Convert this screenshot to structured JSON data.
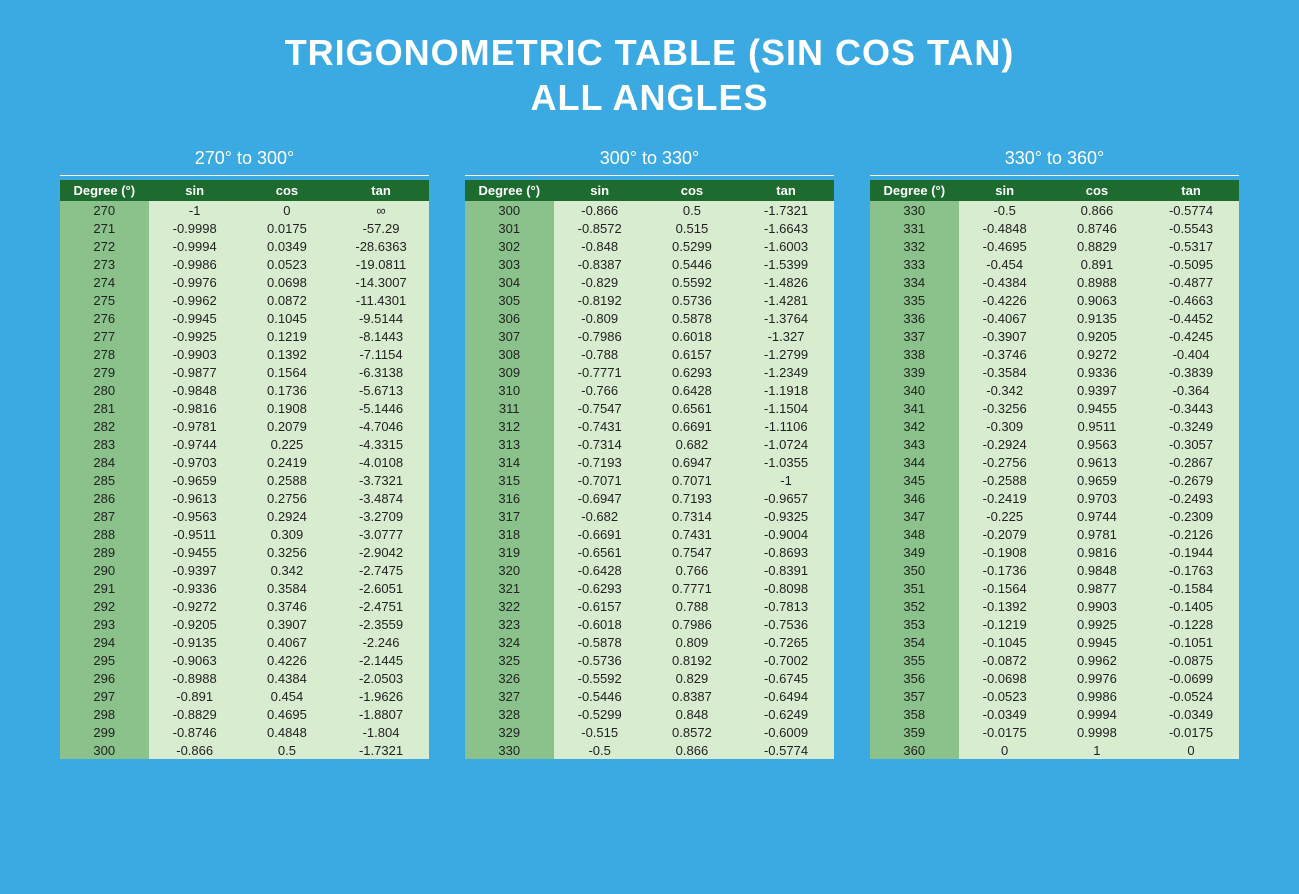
{
  "title_line1": "TRIGONOMETRIC TABLE (SIN COS TAN)",
  "title_line2": "ALL ANGLES",
  "columns": [
    "Degree (°)",
    "sin",
    "cos",
    "tan"
  ],
  "colors": {
    "page_bg": "#3ba9e2",
    "title_text": "#ffffff",
    "header_bg": "#1e6b2f",
    "header_text": "#ffffff",
    "deg_cell_bg": "#8bc28b",
    "val_cell_bg": "#d8ecd0",
    "cell_text": "#222222"
  },
  "sections": [
    {
      "range": "270° to 300°",
      "rows": [
        [
          "270",
          "-1",
          "0",
          "∞"
        ],
        [
          "271",
          "-0.9998",
          "0.0175",
          "-57.29"
        ],
        [
          "272",
          "-0.9994",
          "0.0349",
          "-28.6363"
        ],
        [
          "273",
          "-0.9986",
          "0.0523",
          "-19.0811"
        ],
        [
          "274",
          "-0.9976",
          "0.0698",
          "-14.3007"
        ],
        [
          "275",
          "-0.9962",
          "0.0872",
          "-11.4301"
        ],
        [
          "276",
          "-0.9945",
          "0.1045",
          "-9.5144"
        ],
        [
          "277",
          "-0.9925",
          "0.1219",
          "-8.1443"
        ],
        [
          "278",
          "-0.9903",
          "0.1392",
          "-7.1154"
        ],
        [
          "279",
          "-0.9877",
          "0.1564",
          "-6.3138"
        ],
        [
          "280",
          "-0.9848",
          "0.1736",
          "-5.6713"
        ],
        [
          "281",
          "-0.9816",
          "0.1908",
          "-5.1446"
        ],
        [
          "282",
          "-0.9781",
          "0.2079",
          "-4.7046"
        ],
        [
          "283",
          "-0.9744",
          "0.225",
          "-4.3315"
        ],
        [
          "284",
          "-0.9703",
          "0.2419",
          "-4.0108"
        ],
        [
          "285",
          "-0.9659",
          "0.2588",
          "-3.7321"
        ],
        [
          "286",
          "-0.9613",
          "0.2756",
          "-3.4874"
        ],
        [
          "287",
          "-0.9563",
          "0.2924",
          "-3.2709"
        ],
        [
          "288",
          "-0.9511",
          "0.309",
          "-3.0777"
        ],
        [
          "289",
          "-0.9455",
          "0.3256",
          "-2.9042"
        ],
        [
          "290",
          "-0.9397",
          "0.342",
          "-2.7475"
        ],
        [
          "291",
          "-0.9336",
          "0.3584",
          "-2.6051"
        ],
        [
          "292",
          "-0.9272",
          "0.3746",
          "-2.4751"
        ],
        [
          "293",
          "-0.9205",
          "0.3907",
          "-2.3559"
        ],
        [
          "294",
          "-0.9135",
          "0.4067",
          "-2.246"
        ],
        [
          "295",
          "-0.9063",
          "0.4226",
          "-2.1445"
        ],
        [
          "296",
          "-0.8988",
          "0.4384",
          "-2.0503"
        ],
        [
          "297",
          "-0.891",
          "0.454",
          "-1.9626"
        ],
        [
          "298",
          "-0.8829",
          "0.4695",
          "-1.8807"
        ],
        [
          "299",
          "-0.8746",
          "0.4848",
          "-1.804"
        ],
        [
          "300",
          "-0.866",
          "0.5",
          "-1.7321"
        ]
      ]
    },
    {
      "range": "300° to 330°",
      "rows": [
        [
          "300",
          "-0.866",
          "0.5",
          "-1.7321"
        ],
        [
          "301",
          "-0.8572",
          "0.515",
          "-1.6643"
        ],
        [
          "302",
          "-0.848",
          "0.5299",
          "-1.6003"
        ],
        [
          "303",
          "-0.8387",
          "0.5446",
          "-1.5399"
        ],
        [
          "304",
          "-0.829",
          "0.5592",
          "-1.4826"
        ],
        [
          "305",
          "-0.8192",
          "0.5736",
          "-1.4281"
        ],
        [
          "306",
          "-0.809",
          "0.5878",
          "-1.3764"
        ],
        [
          "307",
          "-0.7986",
          "0.6018",
          "-1.327"
        ],
        [
          "308",
          "-0.788",
          "0.6157",
          "-1.2799"
        ],
        [
          "309",
          "-0.7771",
          "0.6293",
          "-1.2349"
        ],
        [
          "310",
          "-0.766",
          "0.6428",
          "-1.1918"
        ],
        [
          "311",
          "-0.7547",
          "0.6561",
          "-1.1504"
        ],
        [
          "312",
          "-0.7431",
          "0.6691",
          "-1.1106"
        ],
        [
          "313",
          "-0.7314",
          "0.682",
          "-1.0724"
        ],
        [
          "314",
          "-0.7193",
          "0.6947",
          "-1.0355"
        ],
        [
          "315",
          "-0.7071",
          "0.7071",
          "-1"
        ],
        [
          "316",
          "-0.6947",
          "0.7193",
          "-0.9657"
        ],
        [
          "317",
          "-0.682",
          "0.7314",
          "-0.9325"
        ],
        [
          "318",
          "-0.6691",
          "0.7431",
          "-0.9004"
        ],
        [
          "319",
          "-0.6561",
          "0.7547",
          "-0.8693"
        ],
        [
          "320",
          "-0.6428",
          "0.766",
          "-0.8391"
        ],
        [
          "321",
          "-0.6293",
          "0.7771",
          "-0.8098"
        ],
        [
          "322",
          "-0.6157",
          "0.788",
          "-0.7813"
        ],
        [
          "323",
          "-0.6018",
          "0.7986",
          "-0.7536"
        ],
        [
          "324",
          "-0.5878",
          "0.809",
          "-0.7265"
        ],
        [
          "325",
          "-0.5736",
          "0.8192",
          "-0.7002"
        ],
        [
          "326",
          "-0.5592",
          "0.829",
          "-0.6745"
        ],
        [
          "327",
          "-0.5446",
          "0.8387",
          "-0.6494"
        ],
        [
          "328",
          "-0.5299",
          "0.848",
          "-0.6249"
        ],
        [
          "329",
          "-0.515",
          "0.8572",
          "-0.6009"
        ],
        [
          "330",
          "-0.5",
          "0.866",
          "-0.5774"
        ]
      ]
    },
    {
      "range": "330° to 360°",
      "rows": [
        [
          "330",
          "-0.5",
          "0.866",
          "-0.5774"
        ],
        [
          "331",
          "-0.4848",
          "0.8746",
          "-0.5543"
        ],
        [
          "332",
          "-0.4695",
          "0.8829",
          "-0.5317"
        ],
        [
          "333",
          "-0.454",
          "0.891",
          "-0.5095"
        ],
        [
          "334",
          "-0.4384",
          "0.8988",
          "-0.4877"
        ],
        [
          "335",
          "-0.4226",
          "0.9063",
          "-0.4663"
        ],
        [
          "336",
          "-0.4067",
          "0.9135",
          "-0.4452"
        ],
        [
          "337",
          "-0.3907",
          "0.9205",
          "-0.4245"
        ],
        [
          "338",
          "-0.3746",
          "0.9272",
          "-0.404"
        ],
        [
          "339",
          "-0.3584",
          "0.9336",
          "-0.3839"
        ],
        [
          "340",
          "-0.342",
          "0.9397",
          "-0.364"
        ],
        [
          "341",
          "-0.3256",
          "0.9455",
          "-0.3443"
        ],
        [
          "342",
          "-0.309",
          "0.9511",
          "-0.3249"
        ],
        [
          "343",
          "-0.2924",
          "0.9563",
          "-0.3057"
        ],
        [
          "344",
          "-0.2756",
          "0.9613",
          "-0.2867"
        ],
        [
          "345",
          "-0.2588",
          "0.9659",
          "-0.2679"
        ],
        [
          "346",
          "-0.2419",
          "0.9703",
          "-0.2493"
        ],
        [
          "347",
          "-0.225",
          "0.9744",
          "-0.2309"
        ],
        [
          "348",
          "-0.2079",
          "0.9781",
          "-0.2126"
        ],
        [
          "349",
          "-0.1908",
          "0.9816",
          "-0.1944"
        ],
        [
          "350",
          "-0.1736",
          "0.9848",
          "-0.1763"
        ],
        [
          "351",
          "-0.1564",
          "0.9877",
          "-0.1584"
        ],
        [
          "352",
          "-0.1392",
          "0.9903",
          "-0.1405"
        ],
        [
          "353",
          "-0.1219",
          "0.9925",
          "-0.1228"
        ],
        [
          "354",
          "-0.1045",
          "0.9945",
          "-0.1051"
        ],
        [
          "355",
          "-0.0872",
          "0.9962",
          "-0.0875"
        ],
        [
          "356",
          "-0.0698",
          "0.9976",
          "-0.0699"
        ],
        [
          "357",
          "-0.0523",
          "0.9986",
          "-0.0524"
        ],
        [
          "358",
          "-0.0349",
          "0.9994",
          "-0.0349"
        ],
        [
          "359",
          "-0.0175",
          "0.9998",
          "-0.0175"
        ],
        [
          "360",
          "0",
          "1",
          "0"
        ]
      ]
    }
  ]
}
